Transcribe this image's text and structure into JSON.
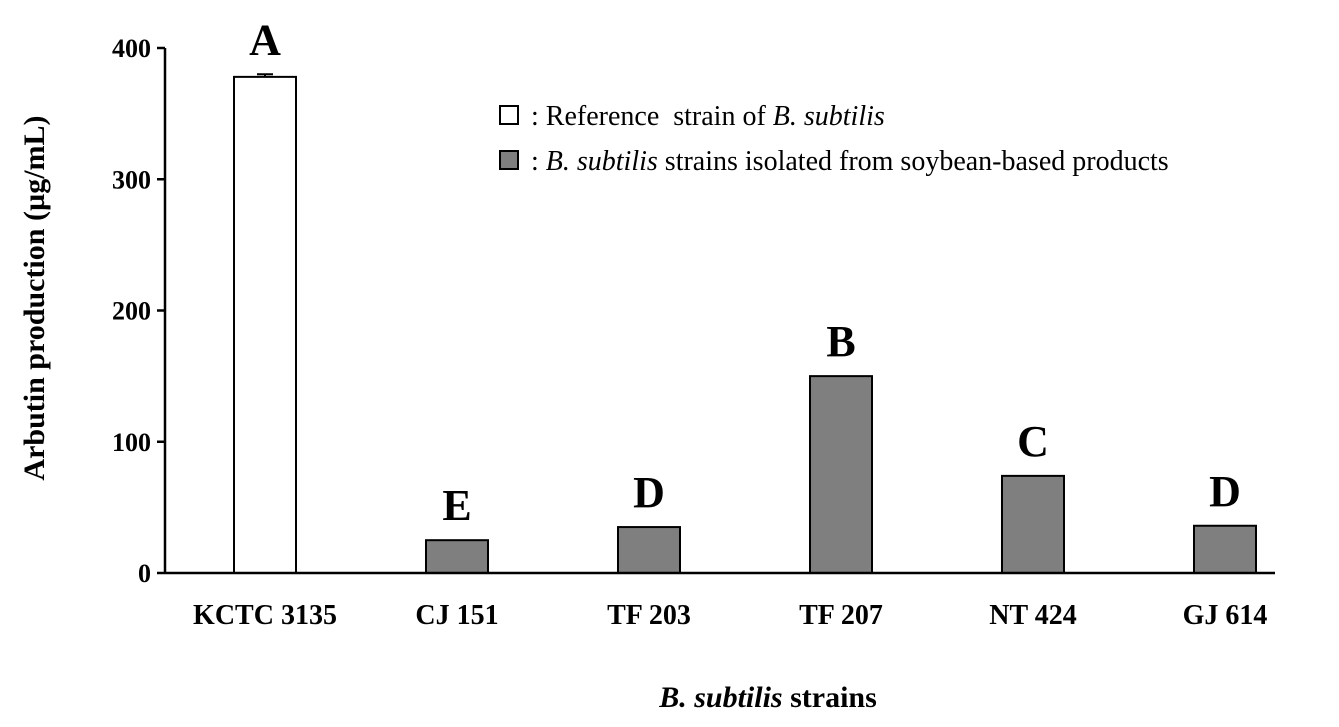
{
  "chart_data": {
    "type": "bar",
    "categories": [
      "KCTC 3135",
      "CJ 151",
      "TF 203",
      "TF 207",
      "NT 424",
      "GJ 614"
    ],
    "values": [
      378,
      25,
      35,
      150,
      74,
      36
    ],
    "error": [
      2,
      0,
      0,
      0,
      0,
      0
    ],
    "significance_letters": [
      "A",
      "E",
      "D",
      "B",
      "C",
      "D"
    ],
    "bar_colors": [
      "#ffffff",
      "#7f7f7f",
      "#7f7f7f",
      "#7f7f7f",
      "#7f7f7f",
      "#7f7f7f"
    ],
    "ylim": [
      0,
      400
    ],
    "yticks": [
      0,
      100,
      200,
      300,
      400
    ],
    "ylabel": "Arbutin production (µg/mL)",
    "xlabel_italic": "B. subtilis",
    "xlabel_rest": " strains",
    "grid": false,
    "legend_position": "top-right",
    "legend": [
      {
        "symbol": "□",
        "color": "#ffffff",
        "text_plain": " : Reference  strain of ",
        "text_italic": "B. subtilis",
        "text_after": ""
      },
      {
        "symbol": "■",
        "color": "#7f7f7f",
        "text_plain": " : ",
        "text_italic": "B. subtilis",
        "text_after": " strains isolated from soybean-based products"
      }
    ]
  }
}
